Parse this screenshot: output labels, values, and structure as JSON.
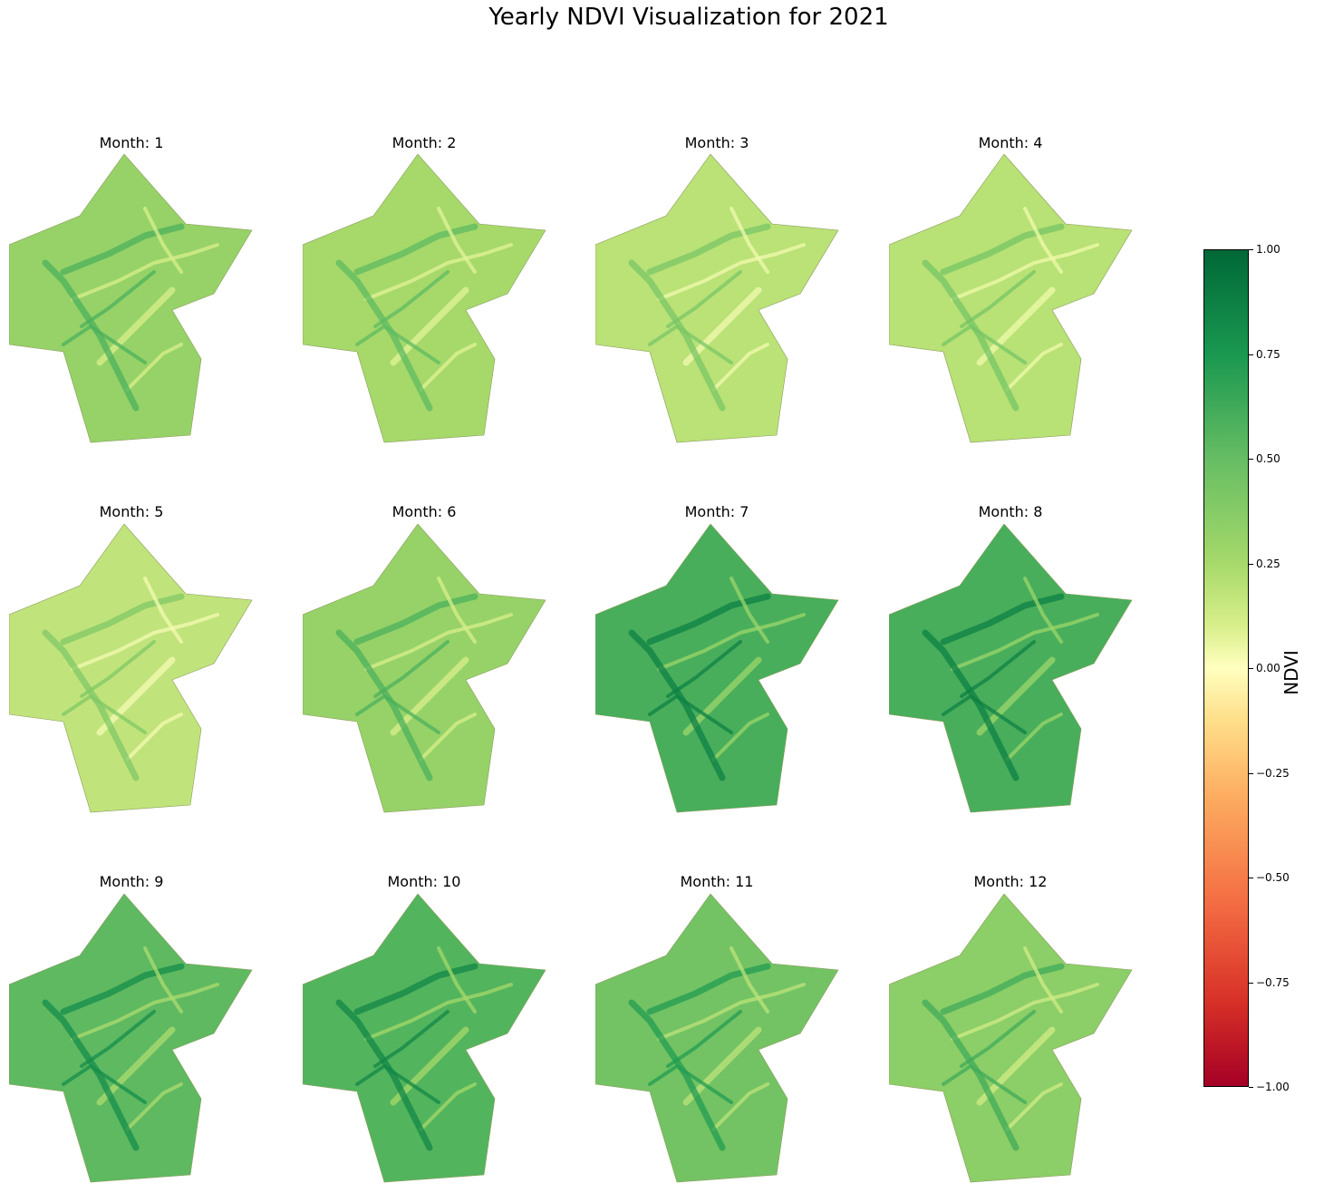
{
  "chart_data": {
    "type": "heatmap",
    "title": "Yearly NDVI Visualization for 2021",
    "panels": [
      {
        "title": "Month: 1",
        "month": 1,
        "mean_ndvi": 0.45
      },
      {
        "title": "Month: 2",
        "month": 2,
        "mean_ndvi": 0.4
      },
      {
        "title": "Month: 3",
        "month": 3,
        "mean_ndvi": 0.32
      },
      {
        "title": "Month: 4",
        "month": 4,
        "mean_ndvi": 0.33
      },
      {
        "title": "Month: 5",
        "month": 5,
        "mean_ndvi": 0.3
      },
      {
        "title": "Month: 6",
        "month": 6,
        "mean_ndvi": 0.45
      },
      {
        "title": "Month: 7",
        "month": 7,
        "mean_ndvi": 0.68
      },
      {
        "title": "Month: 8",
        "month": 8,
        "mean_ndvi": 0.68
      },
      {
        "title": "Month: 9",
        "month": 9,
        "mean_ndvi": 0.62
      },
      {
        "title": "Month: 10",
        "month": 10,
        "mean_ndvi": 0.65
      },
      {
        "title": "Month: 11",
        "month": 11,
        "mean_ndvi": 0.56
      },
      {
        "title": "Month: 12",
        "month": 12,
        "mean_ndvi": 0.48
      }
    ],
    "colorbar": {
      "label": "NDVI",
      "range": [
        -1.0,
        1.0
      ],
      "colormap": "RdYlGn",
      "ticks": [
        "1.00",
        "0.75",
        "0.50",
        "0.25",
        "0.00",
        "−0.25",
        "−0.50",
        "−0.75",
        "−1.00"
      ],
      "tick_values": [
        1.0,
        0.75,
        0.5,
        0.25,
        0.0,
        -0.25,
        -0.5,
        -0.75,
        -1.0
      ]
    },
    "grid": false,
    "axes_visible": false
  }
}
